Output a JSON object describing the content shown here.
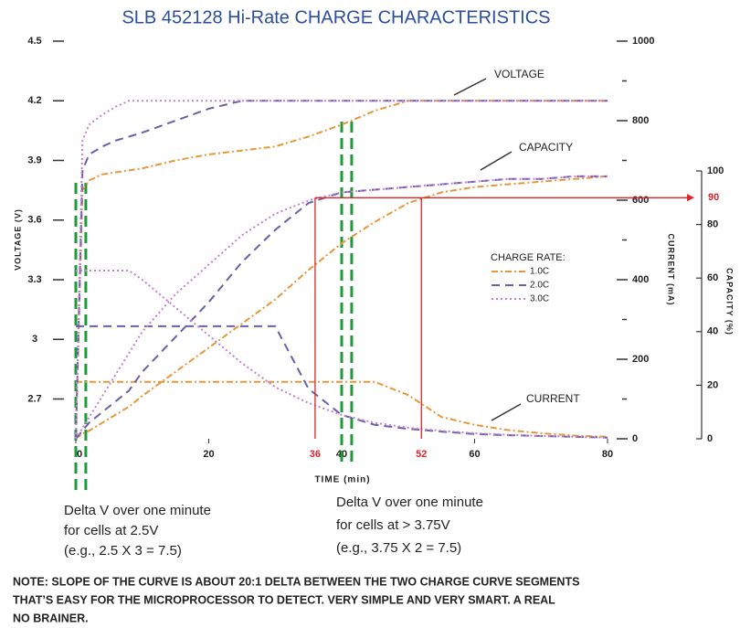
{
  "chart_data": {
    "type": "line",
    "title": "SLB 452128 Hi-Rate CHARGE CHARACTERISTICS",
    "ylabel": "VOLTAGE (V)",
    "y2label": "CURRENT (mA)",
    "y3label": "CAPACITY (%)",
    "xlabel": "TIME (min)",
    "legend_title": "CHARGE RATE:",
    "curve_labels": {
      "voltage": "VOLTAGE",
      "capacity": "CAPACITY",
      "current": "CURRENT"
    },
    "x": [
      0,
      1,
      2,
      4,
      6,
      8,
      10,
      15,
      20,
      25,
      30,
      35,
      40,
      45,
      50,
      55,
      60,
      65,
      70,
      75,
      80
    ],
    "xlim": [
      0,
      80
    ],
    "xticks": [
      0,
      20,
      40,
      60,
      80
    ],
    "ylim": [
      2.5,
      4.5
    ],
    "yticks": [
      2.7,
      3.0,
      3.3,
      3.6,
      3.9,
      4.2,
      4.5
    ],
    "y2lim": [
      0,
      1000
    ],
    "y2ticks": [
      0,
      200,
      400,
      600,
      800,
      1000
    ],
    "y2minor": [
      100,
      300,
      500,
      700,
      900
    ],
    "y3lim": [
      0,
      100
    ],
    "y3ticks": [
      0,
      20,
      40,
      60,
      80,
      100
    ],
    "red_times": [
      36,
      52
    ],
    "red_level": 90,
    "red_color": "#e0242a",
    "green_times": [
      0,
      1.5,
      40,
      41.5
    ],
    "green_color": "#1f9a3a",
    "series": [
      {
        "name": "1.0C",
        "color": "#e8963a",
        "style": "dashdot",
        "voltage": [
          2.5,
          3.75,
          3.8,
          3.83,
          3.84,
          3.85,
          3.86,
          3.9,
          3.93,
          3.95,
          3.97,
          4.02,
          4.08,
          4.15,
          4.2,
          4.2,
          4.2,
          4.2,
          4.2,
          4.2,
          4.2
        ],
        "current": [
          143,
          143,
          143,
          143,
          143,
          143,
          143,
          143,
          143,
          143,
          143,
          143,
          143,
          143,
          110,
          55,
          35,
          22,
          14,
          8,
          5
        ],
        "capacity": [
          0,
          2,
          3,
          6,
          9,
          12,
          16,
          25,
          34,
          43,
          52,
          63,
          73,
          81,
          88,
          92,
          94,
          95,
          96,
          97,
          98
        ]
      },
      {
        "name": "2.0C",
        "color": "#6a5fa8",
        "style": "dashed",
        "voltage": [
          2.5,
          3.85,
          3.93,
          3.97,
          4.0,
          4.02,
          4.04,
          4.1,
          4.16,
          4.2,
          4.2,
          4.2,
          4.2,
          4.2,
          4.2,
          4.2,
          4.2,
          4.2,
          4.2,
          4.2,
          4.2
        ],
        "current": [
          283,
          283,
          283,
          283,
          283,
          283,
          283,
          283,
          283,
          283,
          283,
          126,
          60,
          35,
          25,
          18,
          12,
          9,
          7,
          5,
          3
        ],
        "capacity": [
          0,
          3,
          6,
          10,
          14,
          18,
          25,
          38,
          51,
          66,
          78,
          88,
          92,
          93,
          94,
          95,
          96,
          97,
          97,
          98,
          98
        ]
      },
      {
        "name": "3.0C",
        "color": "#c47fd0",
        "style": "dotted",
        "voltage": [
          2.5,
          4.0,
          4.08,
          4.13,
          4.17,
          4.2,
          4.2,
          4.2,
          4.2,
          4.2,
          4.2,
          4.2,
          4.2,
          4.2,
          4.2,
          4.2,
          4.2,
          4.2,
          4.2,
          4.2,
          4.2
        ],
        "current": [
          423,
          423,
          423,
          423,
          423,
          423,
          400,
          330,
          260,
          190,
          130,
          90,
          60,
          40,
          28,
          20,
          14,
          10,
          7,
          5,
          3
        ],
        "capacity": [
          0,
          4,
          8,
          16,
          24,
          32,
          40,
          54,
          65,
          76,
          84,
          89,
          92,
          93,
          94,
          95,
          96,
          97,
          97,
          98,
          98
        ]
      }
    ]
  },
  "notes": {
    "left": [
      "Delta V over one minute",
      "for cells at 2.5V",
      "(e.g., 2.5 X 3 = 7.5)"
    ],
    "right": [
      "Delta V over one minute",
      "for cells at > 3.75V",
      "(e.g., 3.75 X 2 = 7.5)"
    ],
    "footer": [
      "NOTE: SLOPE OF THE CURVE IS ABOUT 20:1 DELTA BETWEEN THE TWO CHARGE CURVE SEGMENTS",
      "THAT’S EASY FOR THE MICROPROCESSOR TO DETECT.  VERY SIMPLE AND VERY SMART.  A REAL",
      "NO BRAINER."
    ]
  }
}
